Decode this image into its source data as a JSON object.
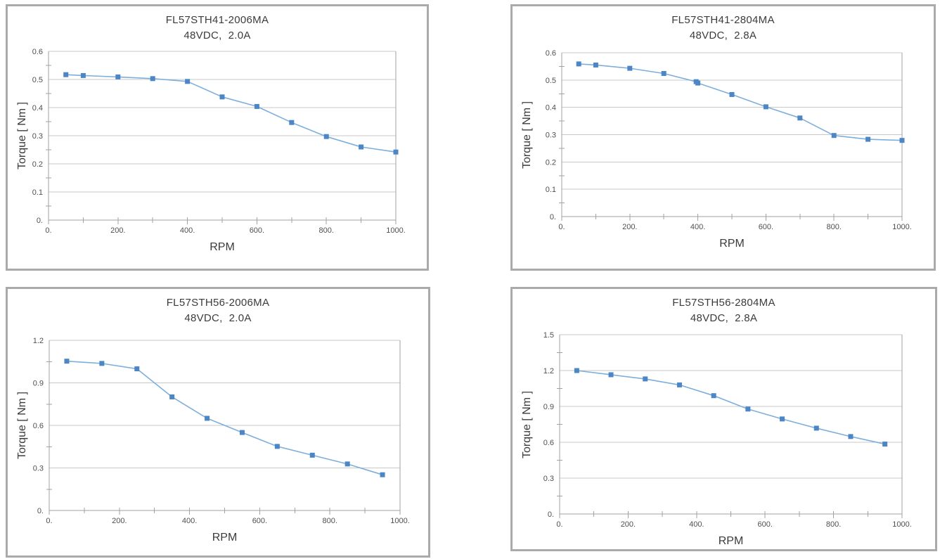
{
  "page": {
    "background": "#ffffff"
  },
  "styles": {
    "line_color": "#7dafdc",
    "marker_color": "#4d86c4",
    "grid_color": "#c9c9c9",
    "axis_color": "#a2a2a2",
    "panel_border_color": "#a9aaac",
    "title_text_color": "#3b3b3b",
    "tick_text_color": "#4f4f4f"
  },
  "chart_data": [
    {
      "type": "line",
      "title": "FL57STH41-2006MA",
      "subtitle": "48VDC,  2.0A",
      "xlabel": "RPM",
      "ylabel": "Torque [ Nm ]",
      "x": [
        50,
        100,
        200,
        300,
        400,
        500,
        600,
        700,
        800,
        900,
        1000
      ],
      "values": [
        0.517,
        0.514,
        0.509,
        0.503,
        0.493,
        0.438,
        0.404,
        0.347,
        0.297,
        0.26,
        0.242
      ],
      "xlim": [
        0,
        1000
      ],
      "ylim": [
        0,
        0.6
      ],
      "xtick_values": [
        0,
        200,
        400,
        600,
        800,
        1000
      ],
      "xtick_labels": [
        "0.",
        "200.",
        "400.",
        "600.",
        "800.",
        "1000."
      ],
      "x_minor_step": 100,
      "ytick_values": [
        0,
        0.1,
        0.2,
        0.3,
        0.4,
        0.5,
        0.6
      ],
      "ytick_labels": [
        "0.",
        "0.1",
        "0.2",
        "0.3",
        "0.4",
        "0.5",
        "0.6"
      ],
      "y_minor_step": 0.05,
      "grid": "horizontal",
      "legend": "none"
    },
    {
      "type": "line",
      "title": "FL57STH41-2804MA",
      "subtitle": "48VDC,  2.8A",
      "xlabel": "RPM",
      "ylabel": "Torque [ Nm ]",
      "x": [
        50,
        100,
        200,
        300,
        395,
        400,
        500,
        600,
        700,
        800,
        900,
        1000
      ],
      "values": [
        0.559,
        0.555,
        0.543,
        0.524,
        0.494,
        0.489,
        0.447,
        0.402,
        0.361,
        0.297,
        0.283,
        0.279
      ],
      "xlim": [
        0,
        1000
      ],
      "ylim": [
        0,
        0.6
      ],
      "xtick_values": [
        0,
        200,
        400,
        600,
        800,
        1000
      ],
      "xtick_labels": [
        "0.",
        "200.",
        "400.",
        "600.",
        "800.",
        "1000."
      ],
      "x_minor_step": 100,
      "ytick_values": [
        0,
        0.1,
        0.2,
        0.3,
        0.4,
        0.5,
        0.6
      ],
      "ytick_labels": [
        "0.",
        "0.1",
        "0.2",
        "0.3",
        "0.4",
        "0.5",
        "0.6"
      ],
      "y_minor_step": 0.05,
      "grid": "horizontal",
      "legend": "none"
    },
    {
      "type": "line",
      "title": "FL57STH56-2006MA",
      "subtitle": "48VDC,  2.0A",
      "xlabel": "RPM",
      "ylabel": "Torque [ Nm ]",
      "x": [
        50,
        150,
        250,
        350,
        450,
        550,
        650,
        750,
        850,
        950
      ],
      "values": [
        1.053,
        1.037,
        0.999,
        0.801,
        0.65,
        0.55,
        0.452,
        0.39,
        0.328,
        0.252
      ],
      "xlim": [
        0,
        1000
      ],
      "ylim": [
        0,
        1.2
      ],
      "xtick_values": [
        0,
        200,
        400,
        600,
        800,
        1000
      ],
      "xtick_labels": [
        "0.",
        "200.",
        "400.",
        "600.",
        "800.",
        "1000."
      ],
      "x_minor_step": 100,
      "ytick_values": [
        0,
        0.3,
        0.6,
        0.9,
        1.2
      ],
      "ytick_labels": [
        "0.",
        "0.3",
        "0.6",
        "0.9",
        "1.2"
      ],
      "y_minor_step": 0.15,
      "grid": "horizontal",
      "legend": "none"
    },
    {
      "type": "line",
      "title": "FL57STH56-2804MA",
      "subtitle": "48VDC,  2.8A",
      "xlabel": "RPM",
      "ylabel": "Torque [ Nm ]",
      "x": [
        50,
        150,
        250,
        350,
        450,
        550,
        650,
        750,
        850,
        950
      ],
      "values": [
        1.2,
        1.165,
        1.13,
        1.08,
        0.99,
        0.878,
        0.795,
        0.718,
        0.648,
        0.585
      ],
      "xlim": [
        0,
        1000
      ],
      "ylim": [
        0,
        1.5
      ],
      "xtick_values": [
        0,
        200,
        400,
        600,
        800,
        1000
      ],
      "xtick_labels": [
        "0.",
        "200.",
        "400.",
        "600.",
        "800.",
        "1000."
      ],
      "x_minor_step": 100,
      "ytick_values": [
        0,
        0.3,
        0.6,
        0.9,
        1.2,
        1.5
      ],
      "ytick_labels": [
        "0.",
        "0.3",
        "0.6",
        "0.9",
        "1.2",
        "1.5"
      ],
      "y_minor_step": 0.15,
      "grid": "horizontal",
      "legend": "none"
    }
  ]
}
